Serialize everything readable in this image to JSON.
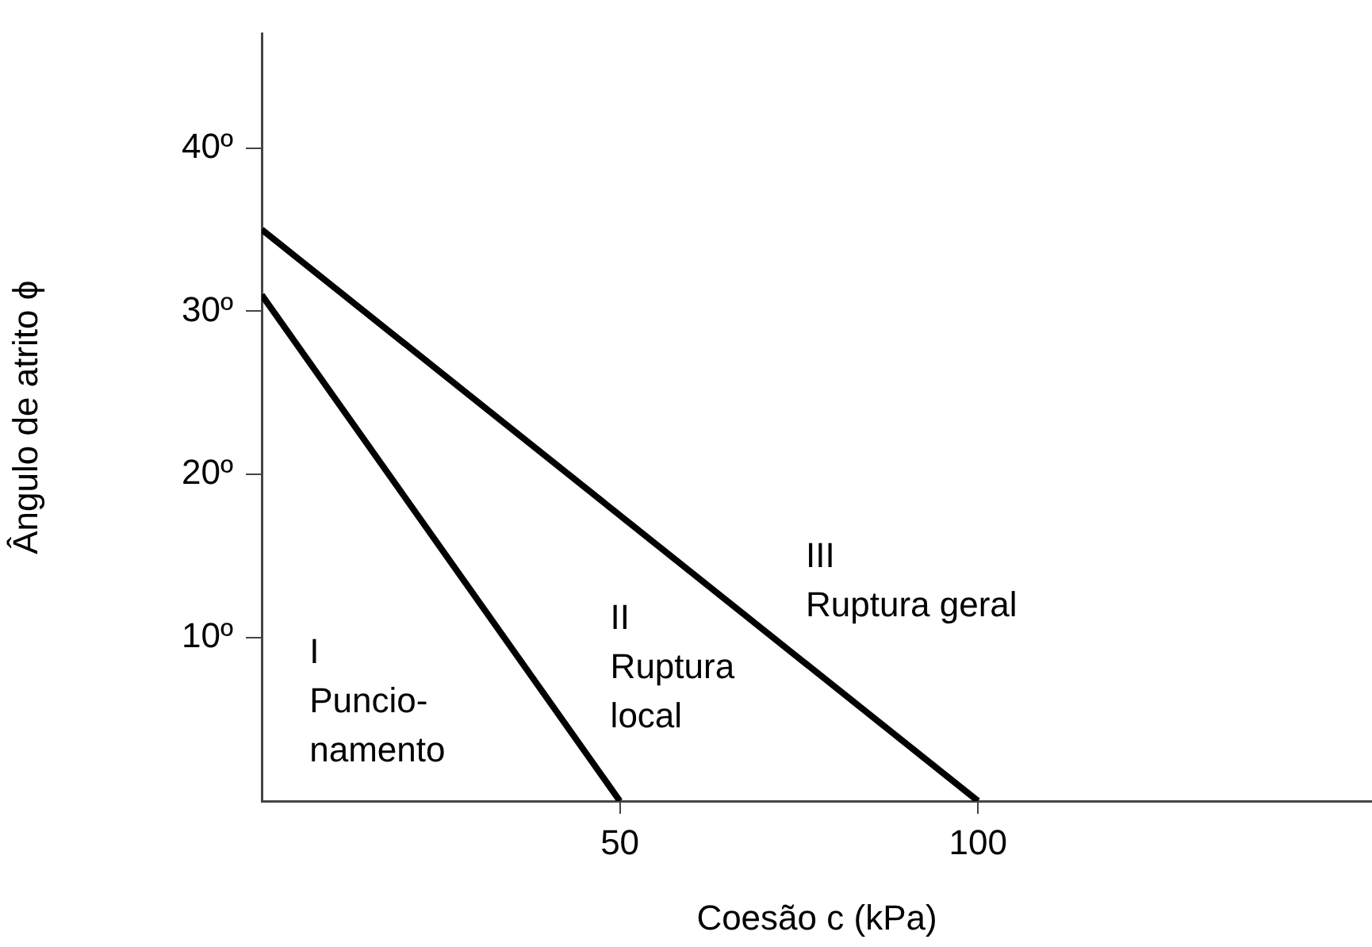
{
  "chart_data": {
    "type": "line",
    "xlabel": "Coesão c (kPa)",
    "ylabel": "Ângulo de atrito ϕ",
    "series": [
      {
        "color": "#000000",
        "x": [
          0,
          50
        ],
        "values": [
          31,
          0
        ]
      },
      {
        "color": "#000000",
        "x": [
          0,
          100
        ],
        "values": [
          35,
          0
        ]
      }
    ],
    "xlim": [
      0,
      155
    ],
    "xticks": [
      50,
      100
    ],
    "ylim": [
      0,
      47
    ],
    "yticks": [
      {
        "value": 10,
        "label": "10º"
      },
      {
        "value": 20,
        "label": "20º"
      },
      {
        "value": 30,
        "label": "30º"
      },
      {
        "value": 40,
        "label": "40º"
      }
    ],
    "annotations": [
      "I\nPuncio-\nnamento",
      "II\nRuptura\nlocal",
      "III\nRuptura geral"
    ],
    "grid": false,
    "legend": false,
    "marker": "none",
    "line_style": "solid"
  }
}
